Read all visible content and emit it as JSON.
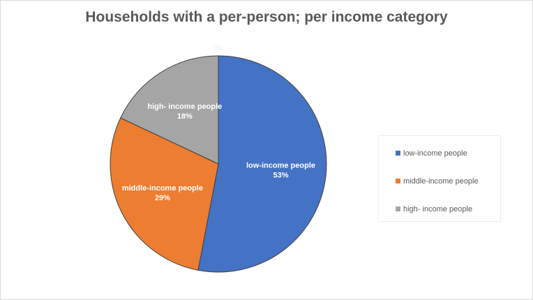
{
  "chart_data": {
    "type": "pie",
    "title": "Households with a per-person; per income category",
    "slices": [
      {
        "label": "low-income people",
        "value": 53,
        "display": "53%",
        "color": "#4472c4"
      },
      {
        "label": "middle-income people",
        "value": 29,
        "display": "29%",
        "color": "#ed7d31"
      },
      {
        "label": "high- income people",
        "value": 18,
        "display": "18%",
        "color": "#a5a5a5"
      },
      {
        "label": "",
        "value": 0,
        "display": "0%",
        "color": "#ffc000"
      }
    ],
    "legend_position": "right",
    "legend": [
      "low-income people",
      "middle-income people",
      "high- income people"
    ]
  }
}
